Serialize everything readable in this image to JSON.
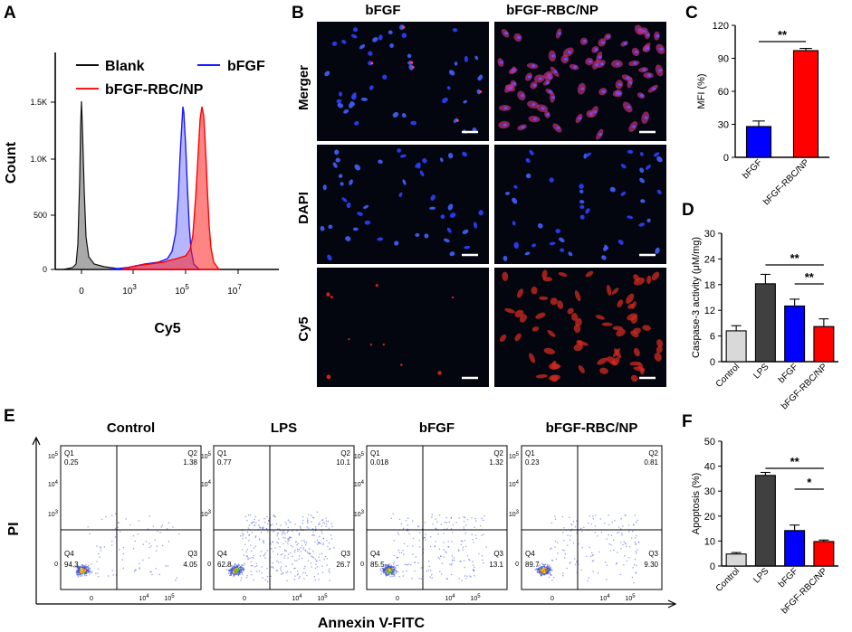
{
  "panel_labels": {
    "a": "A",
    "b": "B",
    "c": "C",
    "d": "D",
    "e": "E",
    "f": "F"
  },
  "colors": {
    "blank": "#222222",
    "bfgf": "#1a1aff",
    "bfgf_rbc": "#ff1a1a",
    "control": "#d9d9d9",
    "lps": "#404040",
    "bfgf_bar": "#0000ff",
    "rbc_bar": "#ff0000",
    "dot": "#3b4fd8"
  },
  "panel_a": {
    "ylabel": "Count",
    "xlabel": "Cy5",
    "yticks": [
      "1.5K",
      "1.0K",
      "500",
      "0"
    ],
    "xticks": [
      {
        "base": "0",
        "exp": ""
      },
      {
        "base": "10",
        "exp": "3"
      },
      {
        "base": "10",
        "exp": "5"
      },
      {
        "base": "10",
        "exp": "7"
      }
    ],
    "legend": {
      "blank": "Blank",
      "bfgf": "bFGF",
      "bfgf_rbc": "bFGF-RBC/NP"
    }
  },
  "panel_b": {
    "col_headers": [
      "bFGF",
      "bFGF-RBC/NP"
    ],
    "row_labels": [
      "Merger",
      "DAPI",
      "Cy5"
    ]
  },
  "chart_data": [
    {
      "panel": "C",
      "type": "bar",
      "title": "",
      "xlabel": "",
      "ylabel": "MFI (%)",
      "categories": [
        "bFGF",
        "bFGF-RBC/NP"
      ],
      "values": [
        28,
        97
      ],
      "errors": [
        5,
        2
      ],
      "ylim": [
        0,
        120
      ],
      "yticks": [
        0,
        30,
        60,
        90,
        120
      ],
      "annotations": [
        {
          "text": "**",
          "between": [
            "bFGF",
            "bFGF-RBC/NP"
          ]
        }
      ]
    },
    {
      "panel": "D",
      "type": "bar",
      "title": "",
      "xlabel": "",
      "ylabel": "Caspase-3 activity (μM/mg)",
      "categories": [
        "Control",
        "LPS",
        "bFGF",
        "bFGF-RBC/NP"
      ],
      "values": [
        7.2,
        18.2,
        13,
        8.2
      ],
      "errors": [
        1.2,
        2.2,
        1.6,
        1.8
      ],
      "ylim": [
        0,
        30
      ],
      "yticks": [
        0,
        6,
        12,
        18,
        24,
        30
      ],
      "annotations": [
        {
          "text": "**",
          "between": [
            "LPS",
            "bFGF-RBC/NP"
          ]
        },
        {
          "text": "**",
          "between": [
            "bFGF",
            "bFGF-RBC/NP"
          ]
        }
      ]
    },
    {
      "panel": "F",
      "type": "bar",
      "title": "",
      "xlabel": "",
      "ylabel": "Apoptosis (%)",
      "categories": [
        "Control",
        "LPS",
        "bFGF",
        "bFGF-RBC/NP"
      ],
      "values": [
        4.8,
        36.3,
        14.2,
        9.8
      ],
      "errors": [
        0.6,
        1.2,
        2.2,
        0.6
      ],
      "ylim": [
        0,
        50
      ],
      "yticks": [
        0,
        10,
        20,
        30,
        40,
        50
      ],
      "annotations": [
        {
          "text": "**",
          "between": [
            "LPS",
            "bFGF-RBC/NP"
          ]
        },
        {
          "text": "*",
          "between": [
            "bFGF",
            "bFGF-RBC/NP"
          ]
        }
      ]
    }
  ],
  "panel_e": {
    "xlabel": "Annexin V-FITC",
    "ylabel": "PI",
    "yticks": [
      {
        "base": "10",
        "exp": "5"
      },
      {
        "base": "10",
        "exp": "4"
      },
      {
        "base": "10",
        "exp": "3"
      },
      {
        "base": "0",
        "exp": ""
      }
    ],
    "xticks": [
      {
        "base": "0",
        "exp": ""
      },
      {
        "base": "10",
        "exp": "4"
      },
      {
        "base": "10",
        "exp": "5"
      }
    ],
    "plots": [
      {
        "title": "Control",
        "q1": "0.25",
        "q2": "1.38",
        "q3": "4.05",
        "q4": "94.3"
      },
      {
        "title": "LPS",
        "q1": "0.77",
        "q2": "10.1",
        "q3": "26.7",
        "q4": "62.8"
      },
      {
        "title": "bFGF",
        "q1": "0.018",
        "q2": "1.32",
        "q3": "13.1",
        "q4": "85.5"
      },
      {
        "title": "bFGF-RBC/NP",
        "q1": "0.23",
        "q2": "0.81",
        "q3": "9.30",
        "q4": "89.7"
      }
    ],
    "quadrant_names": {
      "q1": "Q1",
      "q2": "Q2",
      "q3": "Q3",
      "q4": "Q4"
    }
  }
}
